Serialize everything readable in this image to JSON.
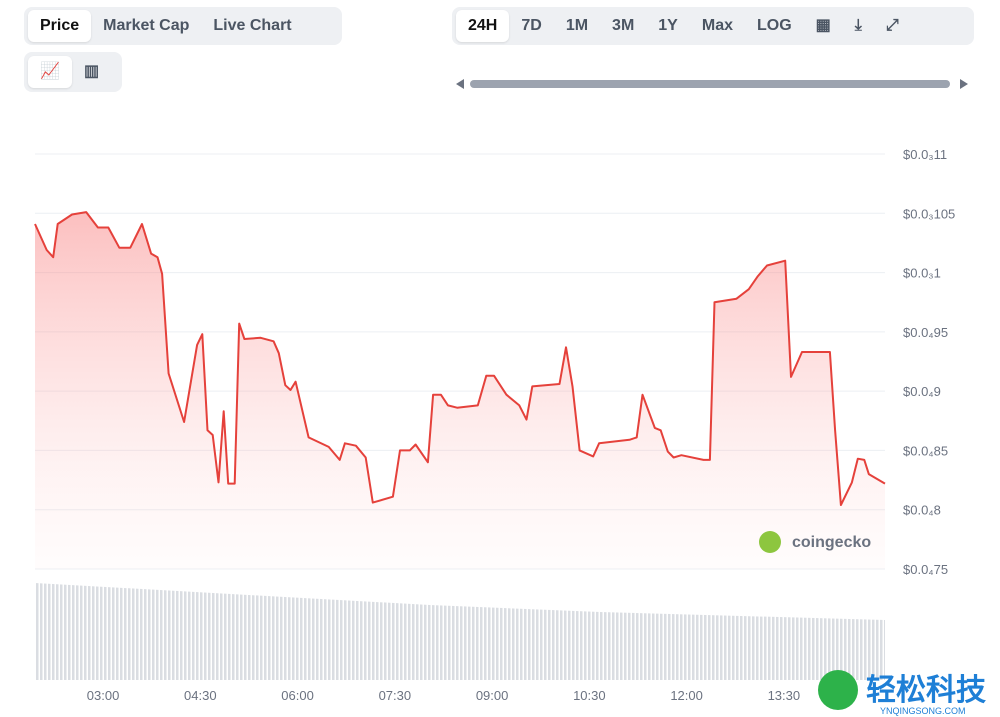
{
  "controls": {
    "tabs": [
      "Price",
      "Market Cap",
      "Live Chart"
    ],
    "ranges": [
      "24H",
      "7D",
      "1M",
      "3M",
      "1Y",
      "Max",
      "LOG"
    ]
  },
  "watermark": "coingecko",
  "corner_logo": {
    "title": "轻松科技",
    "site": "YNQINGSONG.COM"
  },
  "chart_data": {
    "type": "line",
    "color": "#e5413b",
    "x": [
      1.95,
      2.13,
      2.23,
      2.3,
      2.52,
      2.74,
      2.92,
      3.08,
      3.25,
      3.42,
      3.6,
      3.74,
      3.84,
      3.91,
      4.01,
      4.25,
      4.45,
      4.53,
      4.61,
      4.69,
      4.78,
      4.86,
      4.93,
      5.03,
      5.1,
      5.18,
      5.43,
      5.63,
      5.71,
      5.81,
      5.89,
      5.97,
      6.17,
      6.48,
      6.65,
      6.73,
      6.9,
      7.05,
      7.16,
      7.47,
      7.58,
      7.73,
      7.82,
      8.01,
      8.09,
      8.21,
      8.32,
      8.46,
      8.78,
      8.91,
      9.03,
      9.22,
      9.42,
      9.53,
      9.62,
      10.04,
      10.14,
      10.24,
      10.35,
      10.56,
      10.65,
      11.12,
      11.23,
      11.32,
      11.51,
      11.6,
      11.71,
      11.8,
      11.92,
      12.26,
      12.36,
      12.43,
      12.77,
      12.96,
      13.1,
      13.24,
      13.52,
      13.61,
      13.78,
      14.21,
      14.29,
      14.38,
      14.55,
      14.64,
      14.74,
      14.81,
      15.06
    ],
    "values": [
      0.0001041,
      0.0001019,
      0.0001013,
      0.0001041,
      0.0001049,
      0.0001051,
      0.0001038,
      0.0001038,
      0.0001021,
      0.0001021,
      0.0001041,
      0.0001016,
      0.0001013,
      9.99e-05,
      9.15e-05,
      8.74e-05,
      9.39e-05,
      9.48e-05,
      8.67e-05,
      8.63e-05,
      8.23e-05,
      8.83e-05,
      8.22e-05,
      8.22e-05,
      9.57e-05,
      9.44e-05,
      9.45e-05,
      9.42e-05,
      9.32e-05,
      9.05e-05,
      9.01e-05,
      9.08e-05,
      8.61e-05,
      8.53e-05,
      8.42e-05,
      8.56e-05,
      8.54e-05,
      8.44e-05,
      8.06e-05,
      8.11e-05,
      8.5e-05,
      8.5e-05,
      8.55e-05,
      8.4e-05,
      8.97e-05,
      8.97e-05,
      8.88e-05,
      8.86e-05,
      8.88e-05,
      9.13e-05,
      9.13e-05,
      8.97e-05,
      8.88e-05,
      8.76e-05,
      9.04e-05,
      9.06e-05,
      9.37e-05,
      9.04e-05,
      8.5e-05,
      8.45e-05,
      8.56e-05,
      8.59e-05,
      8.61e-05,
      8.97e-05,
      8.69e-05,
      8.67e-05,
      8.49e-05,
      8.44e-05,
      8.46e-05,
      8.42e-05,
      8.42e-05,
      9.75e-05,
      9.78e-05,
      9.86e-05,
      9.97e-05,
      0.0001006,
      0.000101,
      9.12e-05,
      9.33e-05,
      9.33e-05,
      8.67e-05,
      8.04e-05,
      8.23e-05,
      8.43e-05,
      8.42e-05,
      8.3e-05,
      8.22e-05
    ],
    "xlim": [
      1.95,
      15.06
    ],
    "xticks": [
      {
        "value": 3,
        "label": "03:00"
      },
      {
        "value": 4.5,
        "label": "04:30"
      },
      {
        "value": 6,
        "label": "06:00"
      },
      {
        "value": 7.5,
        "label": "07:30"
      },
      {
        "value": 9,
        "label": "09:00"
      },
      {
        "value": 10.5,
        "label": "10:30"
      },
      {
        "value": 12,
        "label": "12:00"
      },
      {
        "value": 13.5,
        "label": "13:30"
      }
    ],
    "ylim": [
      7.5e-05,
      0.00011
    ],
    "yticks": [
      {
        "value": 0.00011,
        "label": "$0.0₃11"
      },
      {
        "value": 0.000105,
        "label": "$0.0₃105"
      },
      {
        "value": 0.0001,
        "label": "$0.0₃1"
      },
      {
        "value": 9.5e-05,
        "label": "$0.0₄95"
      },
      {
        "value": 9e-05,
        "label": "$0.0₄9"
      },
      {
        "value": 8.5e-05,
        "label": "$0.0₄85"
      },
      {
        "value": 8e-05,
        "label": "$0.0₄8"
      },
      {
        "value": 7.5e-05,
        "label": "$0.0₄75"
      }
    ],
    "grid": true
  }
}
